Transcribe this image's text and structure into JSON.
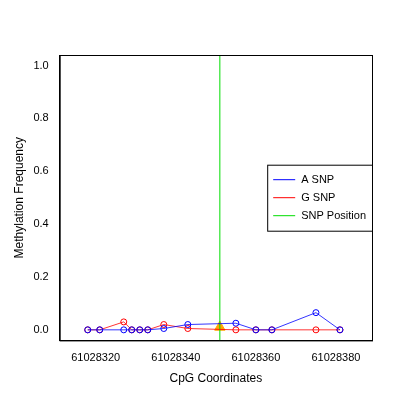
{
  "chart_data": {
    "type": "line",
    "x_label": "CpG Coordinates",
    "y_label": "Methylation Frequency",
    "x": [
      61028318,
      61028321,
      61028327,
      61028329,
      61028331,
      61028333,
      61028337,
      61028343,
      61028355,
      61028360,
      61028364,
      61028375,
      61028381
    ],
    "series": [
      {
        "name": "A SNP",
        "color": "#0000ff",
        "marker": "circle",
        "values": [
          0,
          0,
          0,
          0,
          0,
          0,
          0.005,
          0.02,
          0.025,
          0,
          0,
          0.065,
          0
        ]
      },
      {
        "name": "G SNP",
        "color": "#ff0000",
        "marker": "circle",
        "values": [
          0,
          0,
          0.03,
          0,
          0,
          0,
          0.02,
          0.005,
          0,
          0,
          0,
          0,
          0
        ]
      },
      {
        "name": "SNP Position",
        "color": "#00dd00",
        "type": "vline",
        "x": 61028351
      }
    ],
    "snp_marker": {
      "x": 61028351,
      "value": 0.01,
      "color": "#ffa500",
      "marker": "triangle"
    },
    "xlim": [
      61028311,
      61028389
    ],
    "xticks": [
      61028320,
      61028340,
      61028360,
      61028380
    ],
    "ylim": [
      -0.04,
      1.04
    ],
    "yticks": [
      {
        "value": 0,
        "label": "0.0"
      },
      {
        "value": 0.2,
        "label": "0.2"
      },
      {
        "value": 0.4,
        "label": "0.4"
      },
      {
        "value": 0.6,
        "label": "0.6"
      },
      {
        "value": 0.8,
        "label": "0.8"
      },
      {
        "value": 1,
        "label": "1.0"
      }
    ],
    "grid": false,
    "legend": "right"
  }
}
